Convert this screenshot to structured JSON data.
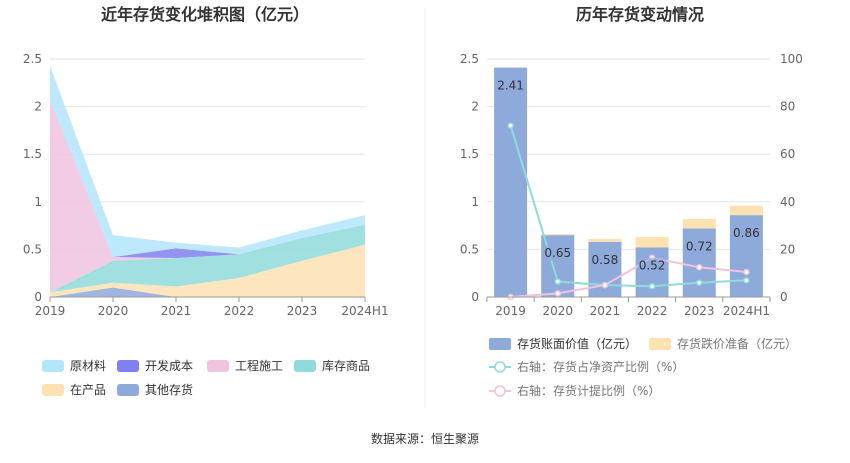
{
  "source": "数据来源：恒生聚源",
  "chart_data": [
    {
      "type": "area",
      "title": "近年存货变化堆积图（亿元）",
      "categories": [
        "2019",
        "2020",
        "2021",
        "2022",
        "2023",
        "2024H1"
      ],
      "ylim": [
        0,
        2.5
      ],
      "yticks": [
        "0",
        "0.5",
        "1",
        "1.5",
        "2",
        "2.5"
      ],
      "grid": true,
      "legend_position": "bottom",
      "series": [
        {
          "name": "其他存货",
          "color": "#8eaadb",
          "values": [
            0.0,
            0.1,
            0.0,
            0.0,
            0.0,
            0.0
          ]
        },
        {
          "name": "在产品",
          "color": "#fde2b1",
          "values": [
            0.05,
            0.05,
            0.11,
            0.2,
            0.38,
            0.55
          ]
        },
        {
          "name": "库存商品",
          "color": "#8fdbdb",
          "values": [
            0.0,
            0.23,
            0.3,
            0.25,
            0.24,
            0.21
          ]
        },
        {
          "name": "工程施工",
          "color": "#f0c3df",
          "values": [
            2.03,
            0.04,
            0.0,
            0.0,
            0.0,
            0.0
          ]
        },
        {
          "name": "开发成本",
          "color": "#8080f0",
          "values": [
            0.0,
            0.0,
            0.1,
            0.0,
            0.0,
            0.0
          ]
        },
        {
          "name": "原材料",
          "color": "#b3e5fc",
          "values": [
            0.35,
            0.23,
            0.06,
            0.07,
            0.08,
            0.1
          ]
        }
      ],
      "legend_order": [
        "原材料",
        "开发成本",
        "工程施工",
        "库存商品",
        "在产品",
        "其他存货"
      ]
    },
    {
      "type": "bar",
      "title": "历年存货变动情况",
      "categories": [
        "2019",
        "2020",
        "2021",
        "2022",
        "2023",
        "2024H1"
      ],
      "ylim": [
        0,
        2.5
      ],
      "yticks": [
        "0",
        "0.5",
        "1",
        "1.5",
        "2",
        "2.5"
      ],
      "y2lim": [
        0,
        100
      ],
      "y2ticks": [
        "0",
        "20",
        "40",
        "60",
        "80",
        "100"
      ],
      "grid": true,
      "legend_position": "bottom",
      "series": [
        {
          "name": "存货账面价值（亿元）",
          "color": "#8eaadb",
          "axis": "left",
          "values": [
            2.41,
            0.65,
            0.58,
            0.52,
            0.72,
            0.86
          ],
          "labels": [
            "2.41",
            "0.65",
            "0.58",
            "0.52",
            "0.72",
            "0.86"
          ]
        },
        {
          "name": "存货跌价准备（亿元）",
          "color": "#fde2b1",
          "axis": "left",
          "values": [
            0.0,
            0.01,
            0.03,
            0.11,
            0.1,
            0.1
          ]
        },
        {
          "name": "右轴：存货占净资产比例（%）",
          "color": "#8fdbdb",
          "axis": "right",
          "values": [
            72,
            6.5,
            5,
            4.5,
            6,
            7
          ]
        },
        {
          "name": "右轴：存货计提比例（%）",
          "color": "#f0c3df",
          "axis": "right",
          "values": [
            0,
            1.5,
            5,
            16.5,
            12.5,
            10.5
          ]
        }
      ]
    }
  ]
}
